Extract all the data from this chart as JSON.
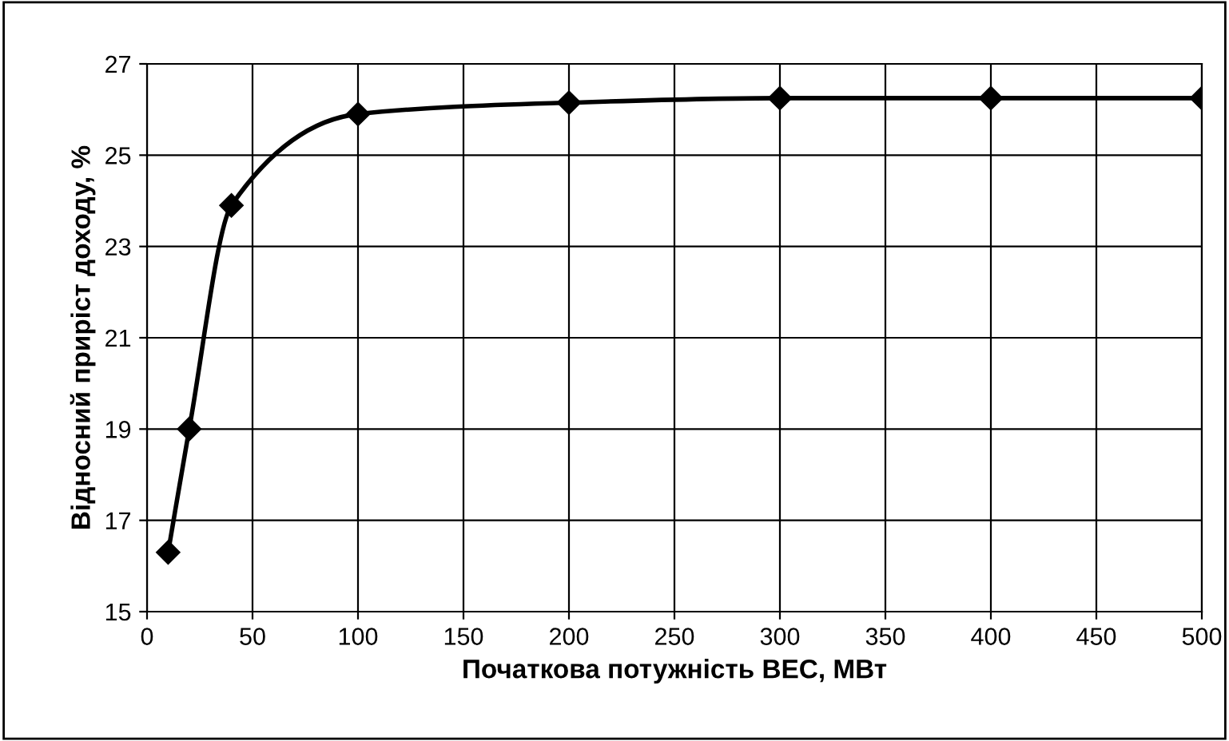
{
  "chart_data": {
    "type": "line",
    "xlabel": "Початкова потужність ВЕС, МВт",
    "ylabel": "Відносний приріст доходу, %",
    "x": [
      10,
      20,
      40,
      100,
      200,
      300,
      400,
      500
    ],
    "series": [
      {
        "color": "#000000",
        "values": [
          16.3,
          19.0,
          23.9,
          25.9,
          26.15,
          26.25,
          26.25,
          26.25
        ]
      }
    ],
    "xlim": [
      0,
      500
    ],
    "xticks": [
      0,
      50,
      100,
      150,
      200,
      250,
      300,
      350,
      400,
      450,
      500
    ],
    "ylim": [
      15,
      27
    ],
    "yticks": [
      15,
      17,
      19,
      21,
      23,
      25,
      27
    ],
    "grid": true,
    "marker": "diamond",
    "line_style": "solid",
    "legend": false
  }
}
